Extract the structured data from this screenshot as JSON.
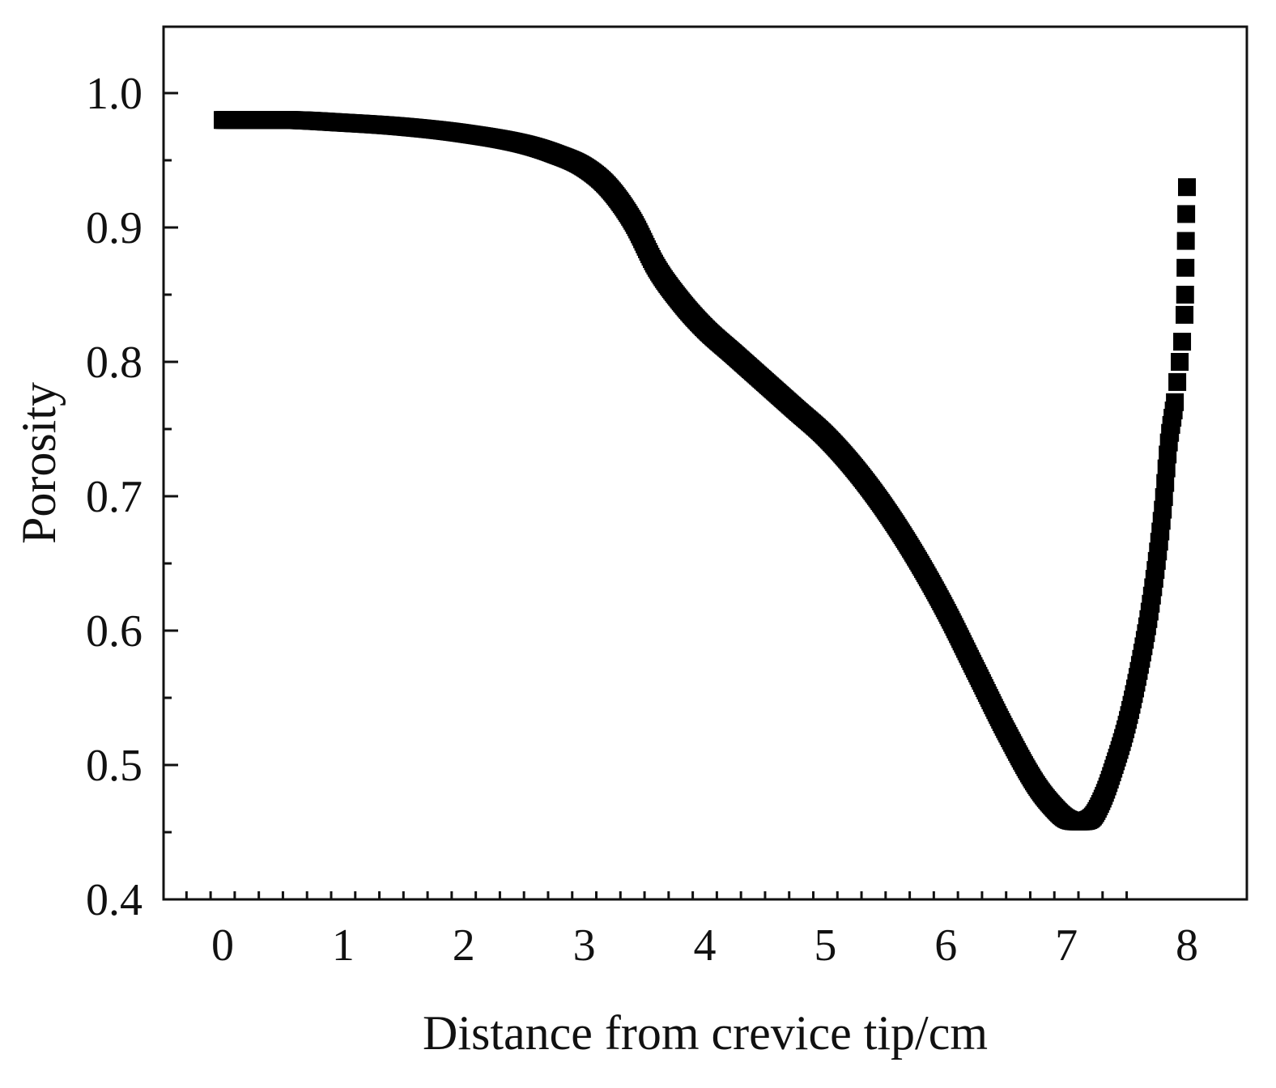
{
  "chart_data": {
    "type": "scatter",
    "title": "",
    "xlabel": "Distance from crevice tip/cm",
    "ylabel": "Porosity",
    "xlim": [
      -0.5,
      8.5
    ],
    "ylim": [
      0.4,
      1.05
    ],
    "x_ticks": [
      0,
      1,
      2,
      3,
      4,
      5,
      6,
      7,
      8
    ],
    "x_tick_labels": [
      "0",
      "1",
      "2",
      "3",
      "4",
      "5",
      "6",
      "7",
      "8"
    ],
    "y_ticks": [
      0.4,
      0.5,
      0.6,
      0.7,
      0.8,
      0.9,
      1.0
    ],
    "y_tick_labels": [
      "0.4",
      "0.5",
      "0.6",
      "0.7",
      "0.8",
      "0.9",
      "1.0"
    ],
    "grid": false,
    "legend": "none",
    "marker": "square",
    "color": "#000000",
    "series": [
      {
        "x": [
          0.0,
          0.5,
          1.0,
          1.5,
          2.0,
          2.5,
          2.75,
          3.0,
          3.2,
          3.4,
          3.6,
          3.8,
          4.0,
          4.25,
          4.5,
          4.75,
          5.0,
          5.25,
          5.5,
          5.75,
          6.0,
          6.25,
          6.5,
          6.75,
          6.9,
          7.0,
          7.1,
          7.2,
          7.3,
          7.4,
          7.5,
          7.6,
          7.7,
          7.8,
          7.85,
          7.9,
          7.92,
          7.94,
          7.96,
          7.98,
          8.0
        ],
        "y": [
          0.98,
          0.98,
          0.978,
          0.975,
          0.97,
          0.962,
          0.955,
          0.945,
          0.93,
          0.905,
          0.87,
          0.845,
          0.825,
          0.805,
          0.785,
          0.765,
          0.745,
          0.72,
          0.69,
          0.655,
          0.615,
          0.57,
          0.525,
          0.485,
          0.468,
          0.46,
          0.458,
          0.46,
          0.475,
          0.5,
          0.53,
          0.57,
          0.62,
          0.69,
          0.74,
          0.77,
          0.785,
          0.8,
          0.815,
          0.835,
          0.93
        ]
      }
    ]
  }
}
